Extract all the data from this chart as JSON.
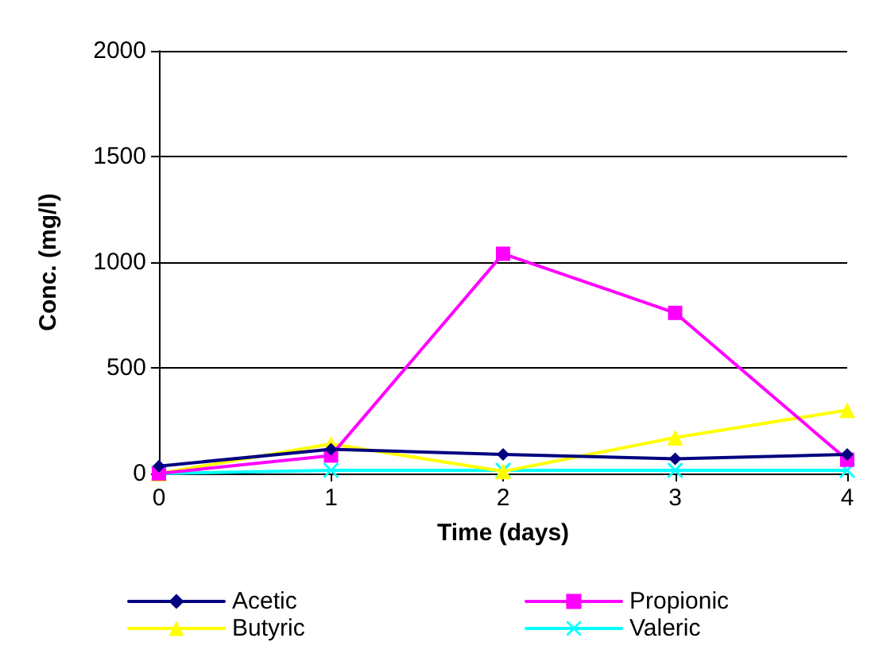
{
  "chart_data": {
    "type": "line",
    "xlabel": "Time (days)",
    "ylabel": "Conc. (mg/l)",
    "x": [
      0,
      1,
      2,
      3,
      4
    ],
    "xlim": [
      0,
      4
    ],
    "xticks": [
      0,
      1,
      2,
      3,
      4
    ],
    "ylim": [
      0,
      2000
    ],
    "yticks": [
      0,
      500,
      1000,
      1500,
      2000
    ],
    "grid": "y",
    "legend": "bottom",
    "line_style": "solid",
    "series": [
      {
        "name": "Acetic",
        "color": "#000080",
        "marker": "diamond",
        "values": [
          35,
          115,
          90,
          70,
          90
        ]
      },
      {
        "name": "Propionic",
        "color": "#ff00ff",
        "marker": "square",
        "values": [
          0,
          85,
          1040,
          760,
          65
        ]
      },
      {
        "name": "Butyric",
        "color": "#ffff00",
        "marker": "triangle",
        "values": [
          0,
          140,
          10,
          170,
          300
        ]
      },
      {
        "name": "Valeric",
        "color": "#00ffff",
        "marker": "cross",
        "values": [
          0,
          15,
          15,
          15,
          15
        ]
      }
    ]
  }
}
